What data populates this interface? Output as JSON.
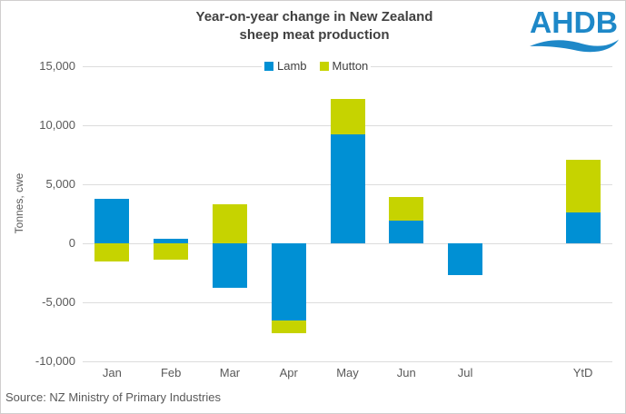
{
  "title": {
    "line1": "Year-on-year change in New Zealand",
    "line2": "sheep meat production"
  },
  "logo_text": "AHDB",
  "source_text": "Source: NZ Ministry of Primary Industries",
  "chart_data": {
    "type": "bar",
    "stacked": true,
    "title": "Year-on-year change in New Zealand sheep meat production",
    "ylabel": "Tonnes, cwe",
    "xlabel": "",
    "categories": [
      "Jan",
      "Feb",
      "Mar",
      "Apr",
      "May",
      "Jun",
      "Jul",
      "",
      "YtD"
    ],
    "series": [
      {
        "name": "Lamb",
        "color": "#0090D4",
        "values": [
          3800,
          400,
          -3800,
          -6500,
          9200,
          1900,
          -2700,
          null,
          2600
        ]
      },
      {
        "name": "Mutton",
        "color": "#C6D300",
        "values": [
          -1500,
          -1400,
          3300,
          -1100,
          3000,
          2000,
          0,
          null,
          4500
        ]
      }
    ],
    "ylim": [
      -10000,
      15000
    ],
    "ytick_step": 5000,
    "ytick_labels": [
      "15,000",
      "10,000",
      "5,000",
      "0",
      "-5,000",
      "-10,000"
    ],
    "grid": true,
    "legend_position": "top-center"
  },
  "colors": {
    "lamb_blue": "#0090D4",
    "mutton_yellow_green": "#C6D300",
    "title_text": "#404040",
    "axis_text": "#595959",
    "gridline": "#DCDCDC",
    "logo_blue": "#1E88C8",
    "border": "#D0CECE"
  }
}
